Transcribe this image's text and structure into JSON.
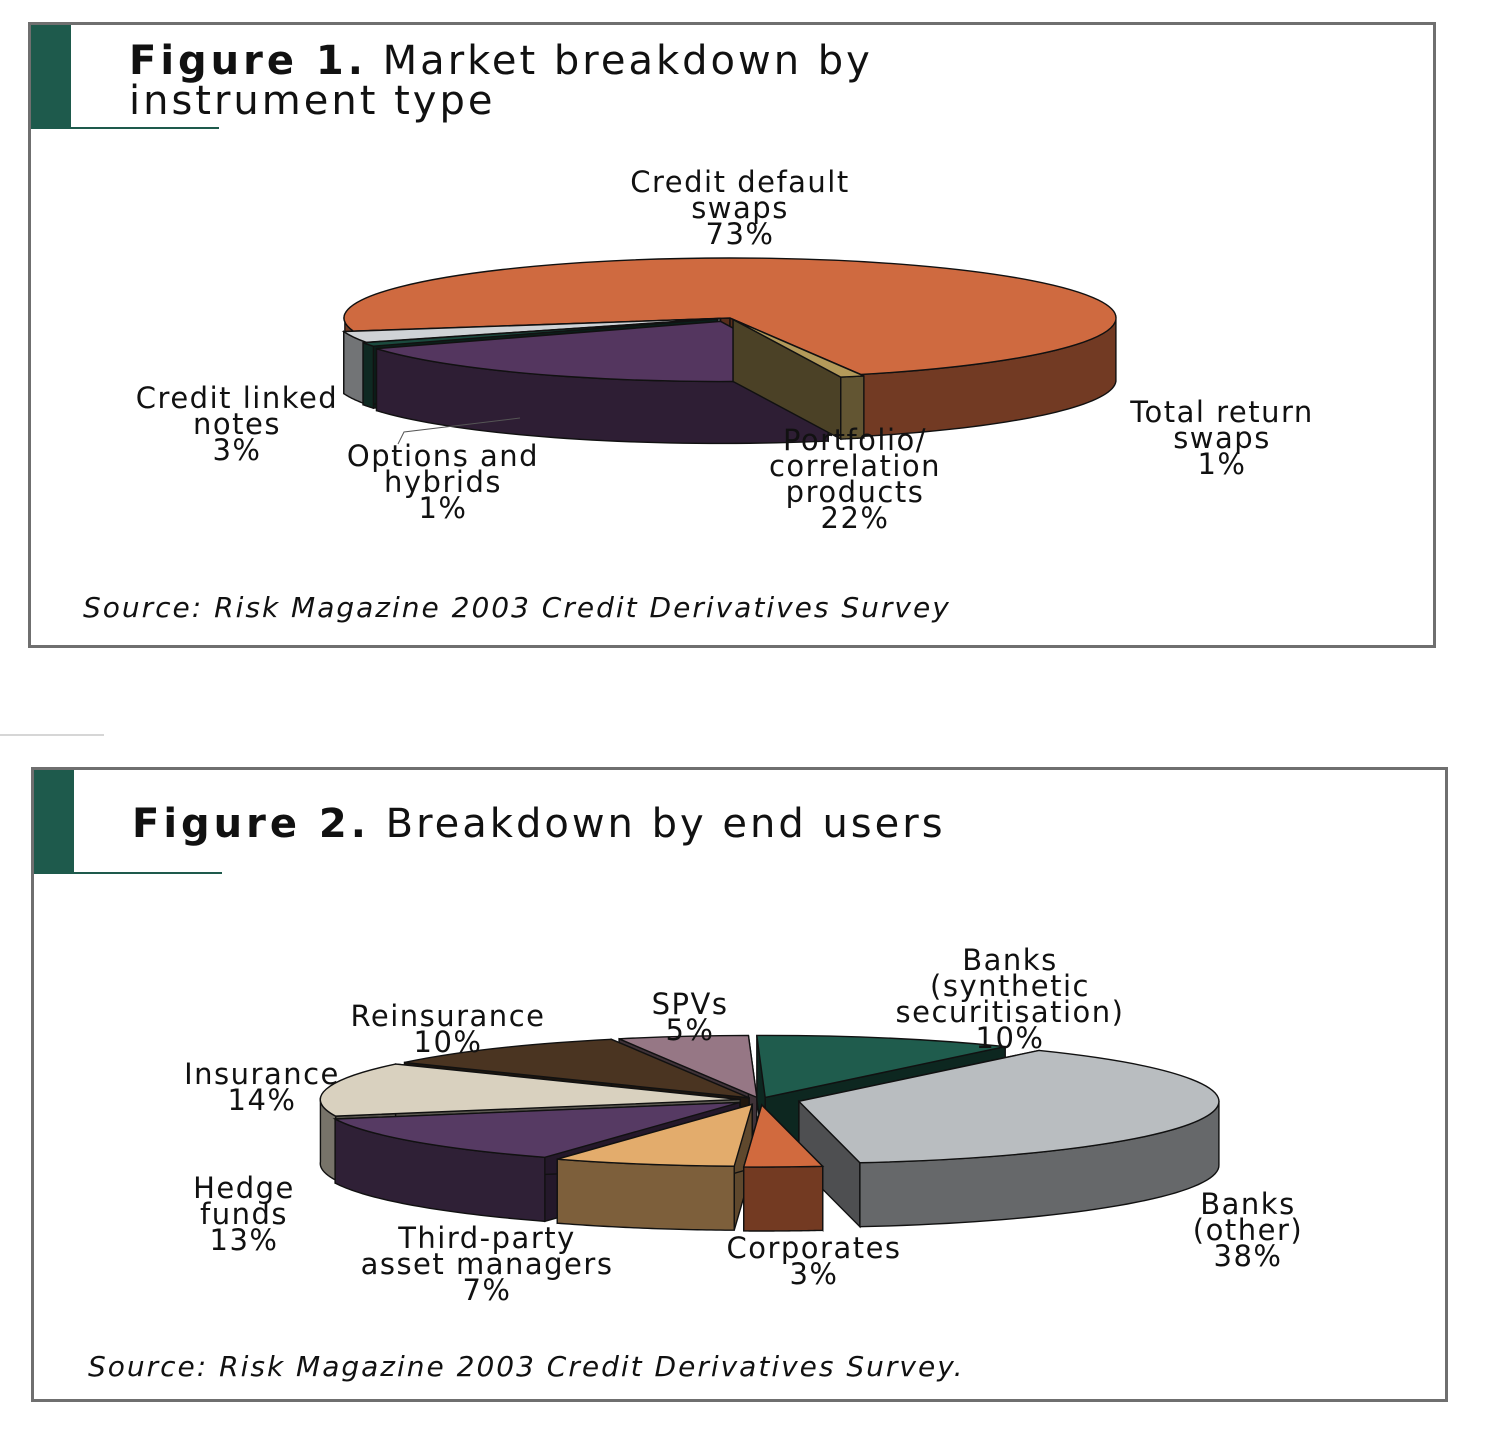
{
  "figure1": {
    "label": "Figure 1.",
    "title_line1": "Market breakdown by",
    "title_line2": "instrument type",
    "source": "Source: Risk Magazine 2003 Credit Derivatives Survey"
  },
  "figure2": {
    "label": "Figure 2.",
    "title": "Breakdown by end users",
    "source": "Source: Risk Magazine 2003 Credit Derivatives Survey."
  },
  "colors": {
    "accent": "#1e5a4c",
    "credit_default_swaps": "#cf6a40",
    "total_return_swaps": "#b39a5a",
    "portfolio_correlation": "#54365f",
    "options_hybrids": "#1b4a3e",
    "credit_linked_notes": "#cfd3d6",
    "banks_synthetic": "#1f5c4d",
    "banks_other": "#b9bdc0",
    "corporates": "#d16a3e",
    "third_party": "#e3ac6c",
    "hedge_funds": "#563a63",
    "insurance": "#d9d1bf",
    "reinsurance": "#4a3421",
    "spvs": "#967785"
  },
  "chart_data": [
    {
      "type": "pie",
      "title": "Figure 1. Market breakdown by instrument type",
      "slices": [
        {
          "name": "Credit default swaps",
          "value": 73,
          "label_lines": [
            "Credit default",
            "swaps",
            "73%"
          ]
        },
        {
          "name": "Total return swaps",
          "value": 1,
          "label_lines": [
            "Total return",
            "swaps",
            "1%"
          ]
        },
        {
          "name": "Portfolio/ correlation products",
          "value": 22,
          "label_lines": [
            "Portfolio/",
            "correlation",
            "products",
            "22%"
          ]
        },
        {
          "name": "Options and hybrids",
          "value": 1,
          "label_lines": [
            "Options and",
            "hybrids",
            "1%"
          ]
        },
        {
          "name": "Credit linked notes",
          "value": 3,
          "label_lines": [
            "Credit linked",
            "notes",
            "3%"
          ]
        }
      ]
    },
    {
      "type": "pie",
      "title": "Figure 2. Breakdown by end users",
      "slices": [
        {
          "name": "Banks (synthetic securitisation)",
          "value": 10,
          "label_lines": [
            "Banks",
            "(synthetic",
            "securitisation)",
            "10%"
          ]
        },
        {
          "name": "Banks (other)",
          "value": 38,
          "label_lines": [
            "Banks",
            "(other)",
            "38%"
          ]
        },
        {
          "name": "Corporates",
          "value": 3,
          "label_lines": [
            "Corporates",
            "3%"
          ]
        },
        {
          "name": "Third-party asset managers",
          "value": 7,
          "label_lines": [
            "Third-party",
            "asset managers",
            "7%"
          ]
        },
        {
          "name": "Hedge funds",
          "value": 13,
          "label_lines": [
            "Hedge",
            "funds",
            "13%"
          ]
        },
        {
          "name": "Insurance",
          "value": 14,
          "label_lines": [
            "Insurance",
            "14%"
          ]
        },
        {
          "name": "Reinsurance",
          "value": 10,
          "label_lines": [
            "Reinsurance",
            "10%"
          ]
        },
        {
          "name": "SPVs",
          "value": 5,
          "label_lines": [
            "SPVs",
            "5%"
          ]
        }
      ]
    }
  ]
}
